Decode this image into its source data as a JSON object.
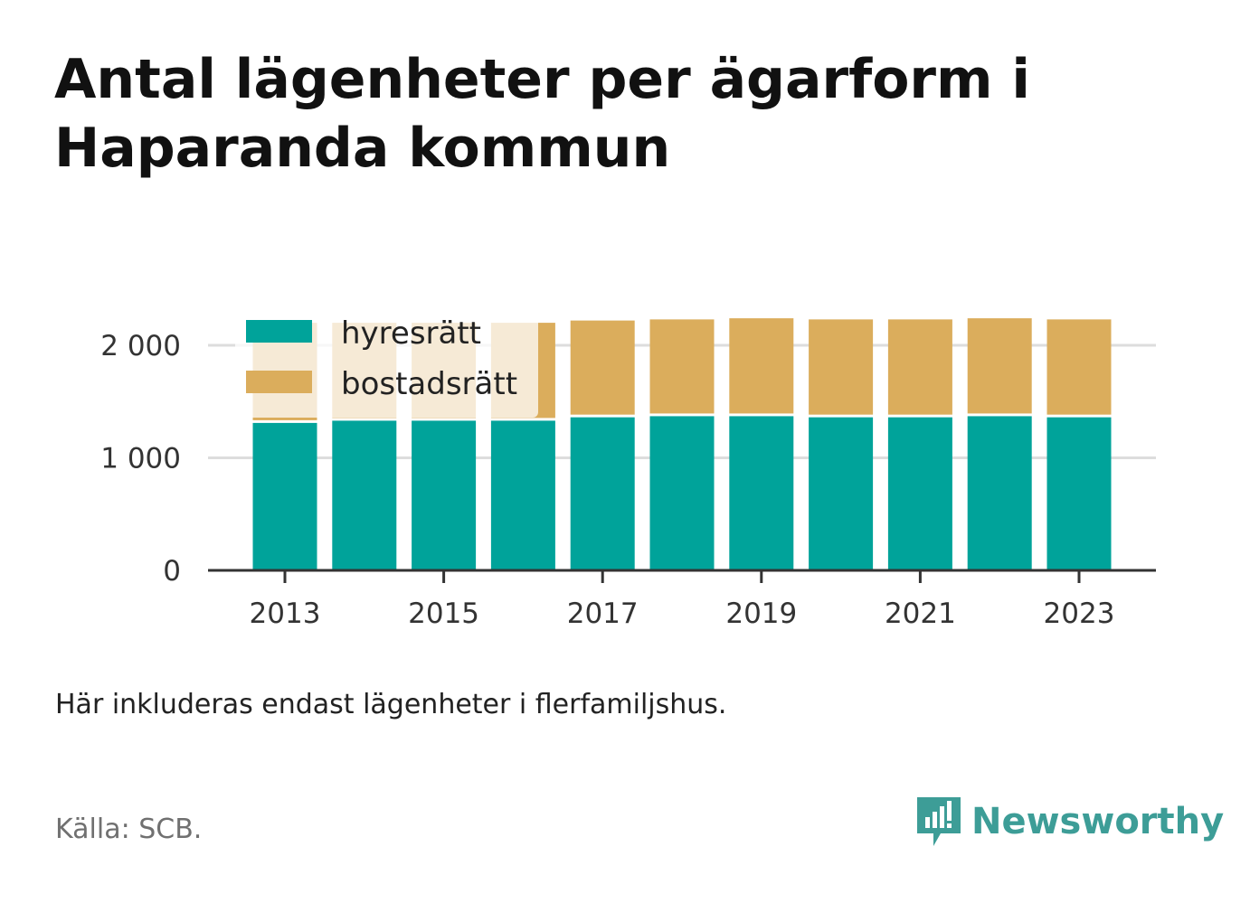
{
  "title": "Antal lägenheter per ägarform i Haparanda kommun",
  "note": "Här inkluderas endast lägenheter i flerfamiljshus.",
  "source": "Källa: SCB.",
  "brand": {
    "name": "Newsworthy",
    "icon": "newsworthy-logo-icon",
    "color": "#3d9d97"
  },
  "colors": {
    "hyresratt": "#00a39a",
    "bostadsratt": "#dbad5c",
    "axis": "#333333",
    "grid": "#dddddd"
  },
  "chart_data": {
    "type": "bar",
    "stacked": true,
    "title": "Antal lägenheter per ägarform i Haparanda kommun",
    "xlabel": "",
    "ylabel": "",
    "categories": [
      "2013",
      "2014",
      "2015",
      "2016",
      "2017",
      "2018",
      "2019",
      "2020",
      "2021",
      "2022",
      "2023"
    ],
    "x_tick_labels": [
      "2013",
      "2015",
      "2017",
      "2019",
      "2021",
      "2023"
    ],
    "y_tick_labels": [
      "0",
      "1 000",
      "2 000"
    ],
    "y_ticks": [
      0,
      1000,
      2000
    ],
    "ylim": [
      0,
      2200
    ],
    "grid": true,
    "legend": {
      "placement": "top-left",
      "entries": [
        "hyresrätt",
        "bostadsrätt"
      ]
    },
    "series": [
      {
        "name": "hyresrätt",
        "color": "#00a39a",
        "values": [
          1310,
          1330,
          1330,
          1330,
          1360,
          1370,
          1370,
          1360,
          1360,
          1370,
          1360
        ]
      },
      {
        "name": "bostadsrätt",
        "color": "#dbad5c",
        "values": [
          890,
          870,
          870,
          870,
          860,
          860,
          870,
          870,
          870,
          870,
          870
        ]
      }
    ]
  }
}
